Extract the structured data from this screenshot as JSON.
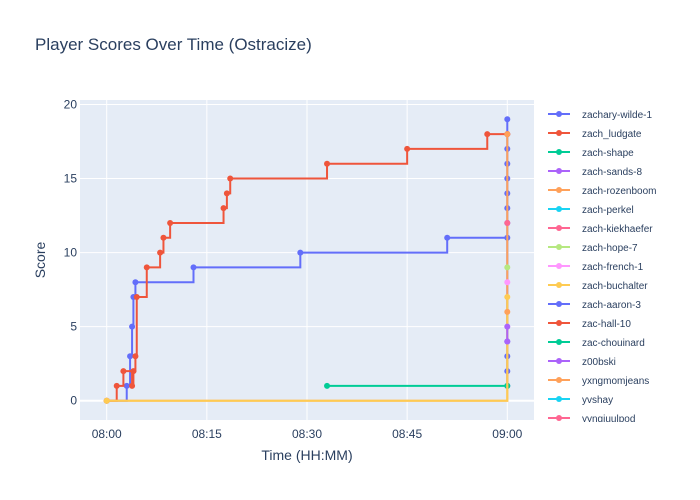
{
  "chart_data": {
    "type": "line",
    "line_shape": "step",
    "title": "Player Scores Over Time (Ostracize)",
    "xlabel": "Time (HH:MM)",
    "ylabel": "Score",
    "x_ticks": [
      "08:00",
      "08:15",
      "08:30",
      "08:45",
      "09:00"
    ],
    "y_ticks": [
      0,
      5,
      10,
      15,
      20
    ],
    "xlim": [
      "07:56",
      "09:04"
    ],
    "ylim": [
      -1.3,
      20.3
    ],
    "grid": true,
    "legend_position": "right",
    "plot_background": "#E5ECF6",
    "series": [
      {
        "name": "zachary-wilde-1",
        "color": "#636EFA",
        "x": [
          "08:00",
          "08:03",
          "08:03.5",
          "08:03.8",
          "08:04",
          "08:04.3",
          "08:13",
          "08:29",
          "08:51",
          "09:00",
          "09:00",
          "09:00",
          "09:00",
          "09:00",
          "09:00",
          "09:00",
          "09:00",
          "09:00",
          "09:00",
          "09:00",
          "09:00",
          "09:00"
        ],
        "y": [
          0,
          1,
          3,
          5,
          7,
          8,
          9,
          10,
          11,
          11,
          12,
          13,
          14,
          15,
          16,
          17,
          18,
          19,
          1,
          2,
          3,
          4
        ]
      },
      {
        "name": "zach_ludgate",
        "color": "#EF553B",
        "x": [
          "08:00",
          "08:01.5",
          "08:02.5",
          "08:03.8",
          "08:04",
          "08:04.3",
          "08:04.5",
          "08:06",
          "08:08",
          "08:08.5",
          "08:09.5",
          "08:17.5",
          "08:18",
          "08:18.5",
          "08:33",
          "08:45",
          "08:57",
          "09:00"
        ],
        "y": [
          0,
          1,
          2,
          1,
          2,
          3,
          7,
          9,
          10,
          11,
          12,
          13,
          14,
          15,
          16,
          17,
          18,
          18
        ]
      },
      {
        "name": "zach-shape",
        "color": "#00CC96",
        "x": [
          "08:33",
          "09:00"
        ],
        "y": [
          1,
          1
        ]
      },
      {
        "name": "zach-sands-8",
        "color": "#AB63FA",
        "x": [],
        "y": []
      },
      {
        "name": "zach-rozenboom",
        "color": "#FFA15A",
        "x": [
          "08:00",
          "09:00"
        ],
        "y": [
          0,
          18
        ]
      },
      {
        "name": "zach-perkel",
        "color": "#19D3F3",
        "x": [],
        "y": []
      },
      {
        "name": "zach-kiekhaefer",
        "color": "#FF6692",
        "x": [
          "09:00"
        ],
        "y": [
          12
        ]
      },
      {
        "name": "zach-hope-7",
        "color": "#B6E880",
        "x": [
          "09:00"
        ],
        "y": [
          9
        ]
      },
      {
        "name": "zach-french-1",
        "color": "#FF97FF",
        "x": [
          "09:00"
        ],
        "y": [
          8
        ]
      },
      {
        "name": "zach-buchalter",
        "color": "#FECB52",
        "x": [
          "08:00",
          "09:00"
        ],
        "y": [
          0,
          7
        ]
      },
      {
        "name": "zach-aaron-3",
        "color": "#636EFA",
        "x": [],
        "y": []
      },
      {
        "name": "zac-hall-10",
        "color": "#EF553B",
        "x": [],
        "y": []
      },
      {
        "name": "zac-chouinard",
        "color": "#00CC96",
        "x": [],
        "y": []
      },
      {
        "name": "z00bski",
        "color": "#AB63FA",
        "x": [
          "09:00",
          "09:00"
        ],
        "y": [
          4,
          5
        ]
      },
      {
        "name": "yxngmomjeans",
        "color": "#FFA15A",
        "x": [
          "09:00"
        ],
        "y": [
          6
        ]
      },
      {
        "name": "yvshay",
        "color": "#19D3F3",
        "x": [],
        "y": []
      },
      {
        "name": "yyngiuulpod",
        "color": "#FF6692",
        "x": [],
        "y": []
      }
    ]
  }
}
